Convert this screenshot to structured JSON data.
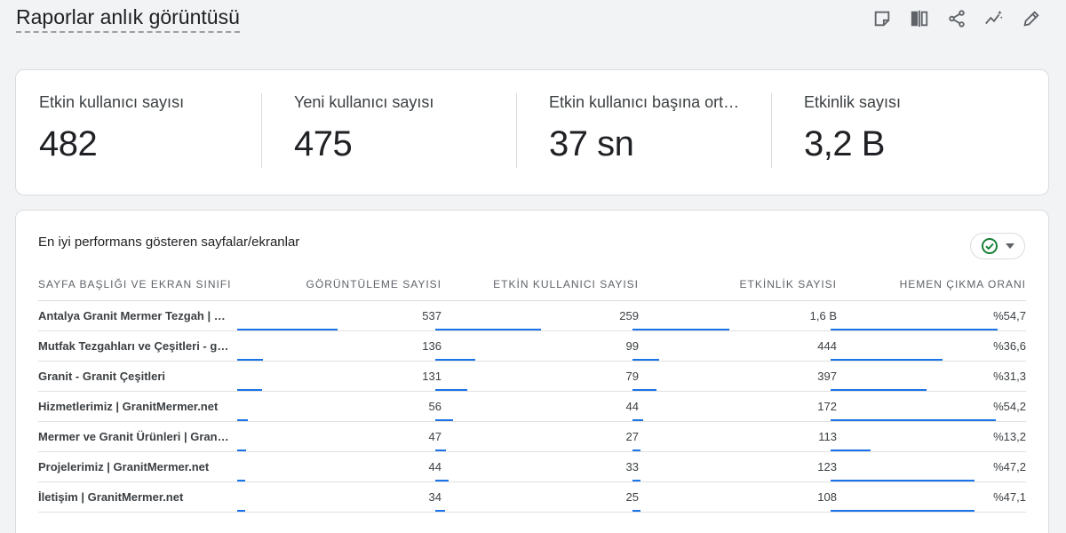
{
  "header": {
    "title": "Raporlar anlık görüntüsü",
    "toolbar": [
      {
        "icon": "note-icon"
      },
      {
        "icon": "compare-icon"
      },
      {
        "icon": "share-icon"
      },
      {
        "icon": "insights-icon"
      },
      {
        "icon": "pencil-icon"
      }
    ]
  },
  "metrics": [
    {
      "label": "Etkin kullanıcı sayısı",
      "value": "482"
    },
    {
      "label": "Yeni kullanıcı sayısı",
      "value": "475"
    },
    {
      "label": "Etkin kullanıcı başına ortalama etkileşim süresi",
      "value": "37 sn"
    },
    {
      "label": "Etkinlik sayısı",
      "value": "3,2 B"
    }
  ],
  "table": {
    "title": "En iyi performans gösteren sayfalar/ekranlar",
    "status_icon": "check-circle-icon",
    "accent": "#1a73e8",
    "columns": [
      "SAYFA BAŞLIĞI VE EKRAN SINIFI",
      "GÖRÜNTÜLEME SAYISI",
      "ETKİN KULLANICI SAYISI",
      "ETKİNLİK SAYISI",
      "HEMEN ÇIKMA ORANI"
    ],
    "rows": [
      {
        "name": "Antalya Granit Mermer Tezgah | Kaliteli Granit Ürünleri",
        "views": "537",
        "users": "259",
        "events": "1,6 B",
        "bounce": "%54,7",
        "v": [
          537,
          259,
          1600,
          54.7
        ]
      },
      {
        "name": "Mutfak Tezgahları ve Çeşitleri - granitmermer.net",
        "views": "136",
        "users": "99",
        "events": "444",
        "bounce": "%36,6",
        "v": [
          136,
          99,
          444,
          36.6
        ]
      },
      {
        "name": "Granit - Granit Çeşitleri",
        "views": "131",
        "users": "79",
        "events": "397",
        "bounce": "%31,3",
        "v": [
          131,
          79,
          397,
          31.3
        ]
      },
      {
        "name": "Hizmetlerimiz | GranitMermer.net",
        "views": "56",
        "users": "44",
        "events": "172",
        "bounce": "%54,2",
        "v": [
          56,
          44,
          172,
          54.2
        ]
      },
      {
        "name": "Mermer ve Granit Ürünleri | GranitMermer.net",
        "views": "47",
        "users": "27",
        "events": "113",
        "bounce": "%13,2",
        "v": [
          47,
          27,
          113,
          13.2
        ]
      },
      {
        "name": "Projelerimiz | GranitMermer.net",
        "views": "44",
        "users": "33",
        "events": "123",
        "bounce": "%47,2",
        "v": [
          44,
          33,
          123,
          47.2
        ]
      },
      {
        "name": "İletişim | GranitMermer.net",
        "views": "34",
        "users": "25",
        "events": "108",
        "bounce": "%47,1",
        "v": [
          34,
          25,
          108,
          47.1
        ]
      }
    ]
  }
}
